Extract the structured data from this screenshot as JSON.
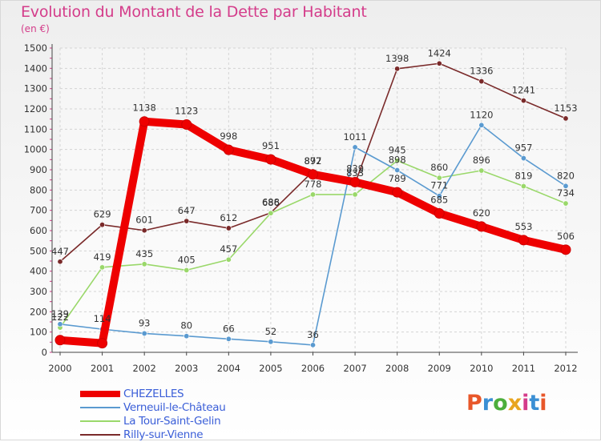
{
  "title": "Evolution du Montant de la Dette par Habitant",
  "subtitle": "(en €)",
  "logo_text": "Proxiti",
  "logo_colors": [
    "#e8572a",
    "#3b8fd4",
    "#4cae3c",
    "#e8a51f",
    "#d43c8a",
    "#3b8fd4",
    "#e8572a"
  ],
  "chart_data": {
    "type": "line",
    "x": [
      "2000",
      "2001",
      "2002",
      "2003",
      "2004",
      "2005",
      "2006",
      "2007",
      "2008",
      "2009",
      "2010",
      "2011",
      "2012"
    ],
    "ylim": [
      0,
      1500
    ],
    "yticks": [
      0,
      100,
      200,
      300,
      400,
      500,
      600,
      700,
      800,
      900,
      1000,
      1100,
      1200,
      1300,
      1400,
      1500
    ],
    "grid": true,
    "legend_position": "bottom-left",
    "series": [
      {
        "name": "CHEZELLES",
        "color": "#ee0000",
        "values": [
          60,
          45,
          1138,
          1123,
          998,
          951,
          877,
          839,
          789,
          685,
          620,
          553,
          506
        ]
      },
      {
        "name": "Verneuil-le-Château",
        "color": "#5a9ad0",
        "values": [
          139,
          114,
          93,
          80,
          66,
          52,
          36,
          1011,
          898,
          771,
          1120,
          957,
          820
        ]
      },
      {
        "name": "La Tour-Saint-Gelin",
        "color": "#9ad86a",
        "values": [
          122,
          419,
          435,
          405,
          457,
          686,
          778,
          778,
          945,
          860,
          896,
          819,
          734
        ]
      },
      {
        "name": "Rilly-sur-Vienne",
        "color": "#7a2a2a",
        "values": [
          447,
          629,
          601,
          647,
          612,
          688,
          892,
          833,
          1398,
          1424,
          1336,
          1241,
          1153
        ]
      }
    ],
    "point_labels": [
      [
        "",
        "",
        "1138",
        "1123",
        "998",
        "951",
        "877",
        "839",
        "789",
        "685",
        "620",
        "553",
        "506"
      ],
      [
        "139",
        "114",
        "93",
        "80",
        "66",
        "52",
        "36",
        "1011",
        "898",
        "771",
        "1120",
        "957",
        "820"
      ],
      [
        "122",
        "419",
        "435",
        "405",
        "457",
        "686",
        "778",
        "",
        "945",
        "860",
        "896",
        "819",
        "734"
      ],
      [
        "447",
        "629",
        "601",
        "647",
        "612",
        "688",
        "892",
        "833",
        "1398",
        "1424",
        "1336",
        "1241",
        "1153"
      ]
    ]
  }
}
